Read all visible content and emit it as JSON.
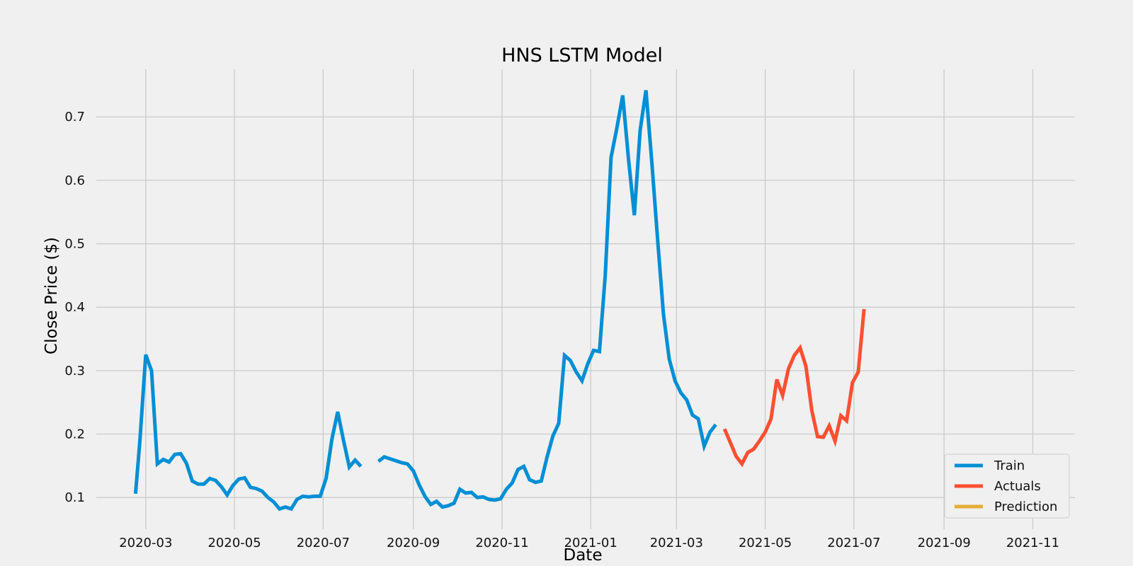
{
  "chart_data": {
    "type": "line",
    "title": "HNS LSTM Model",
    "xlabel": "Date",
    "ylabel": "Close Price ($)",
    "xlim": [
      "2020-01-27",
      "2021-11-30"
    ],
    "ylim": [
      0.05,
      0.775
    ],
    "x_ticks": [
      "2020-03",
      "2020-05",
      "2020-07",
      "2020-09",
      "2020-11",
      "2021-01",
      "2021-03",
      "2021-05",
      "2021-07",
      "2021-09",
      "2021-11"
    ],
    "y_ticks": [
      "0.1",
      "0.2",
      "0.3",
      "0.4",
      "0.5",
      "0.6",
      "0.7"
    ],
    "grid": true,
    "legend_position": "bottom-right",
    "series": [
      {
        "name": "Train",
        "color": "#008fd5",
        "points": [
          [
            "2020-02-23",
            0.106
          ],
          [
            "2020-02-26",
            0.19
          ],
          [
            "2020-03-01",
            0.325
          ],
          [
            "2020-03-05",
            0.3
          ],
          [
            "2020-03-09",
            0.153
          ],
          [
            "2020-03-13",
            0.16
          ],
          [
            "2020-03-17",
            0.156
          ],
          [
            "2020-03-21",
            0.168
          ],
          [
            "2020-03-25",
            0.169
          ],
          [
            "2020-03-29",
            0.154
          ],
          [
            "2020-04-02",
            0.126
          ],
          [
            "2020-04-06",
            0.121
          ],
          [
            "2020-04-10",
            0.121
          ],
          [
            "2020-04-14",
            0.13
          ],
          [
            "2020-04-18",
            0.127
          ],
          [
            "2020-04-22",
            0.117
          ],
          [
            "2020-04-26",
            0.104
          ],
          [
            "2020-04-30",
            0.119
          ],
          [
            "2020-05-04",
            0.129
          ],
          [
            "2020-05-08",
            0.131
          ],
          [
            "2020-05-12",
            0.116
          ],
          [
            "2020-05-16",
            0.114
          ],
          [
            "2020-05-20",
            0.11
          ],
          [
            "2020-05-24",
            0.1
          ],
          [
            "2020-05-28",
            0.093
          ],
          [
            "2020-06-01",
            0.082
          ],
          [
            "2020-06-05",
            0.085
          ],
          [
            "2020-06-09",
            0.082
          ],
          [
            "2020-06-13",
            0.097
          ],
          [
            "2020-06-17",
            0.102
          ],
          [
            "2020-06-21",
            0.101
          ],
          [
            "2020-06-25",
            0.102
          ],
          [
            "2020-06-29",
            0.102
          ],
          [
            "2020-07-03",
            0.13
          ],
          [
            "2020-07-07",
            0.192
          ],
          [
            "2020-07-11",
            0.235
          ],
          [
            "2020-07-15",
            0.19
          ],
          [
            "2020-07-19",
            0.148
          ],
          [
            "2020-07-23",
            0.159
          ],
          [
            "2020-07-27",
            0.149
          ],
          null,
          [
            "2020-08-08",
            0.157
          ],
          [
            "2020-08-12",
            0.164
          ],
          [
            "2020-08-16",
            0.161
          ],
          [
            "2020-08-20",
            0.158
          ],
          [
            "2020-08-24",
            0.155
          ],
          [
            "2020-08-28",
            0.153
          ],
          [
            "2020-09-01",
            0.142
          ],
          [
            "2020-09-05",
            0.12
          ],
          [
            "2020-09-09",
            0.102
          ],
          [
            "2020-09-13",
            0.089
          ],
          [
            "2020-09-17",
            0.094
          ],
          [
            "2020-09-21",
            0.085
          ],
          [
            "2020-09-25",
            0.087
          ],
          [
            "2020-09-29",
            0.091
          ],
          [
            "2020-10-03",
            0.113
          ],
          [
            "2020-10-07",
            0.107
          ],
          [
            "2020-10-11",
            0.108
          ],
          [
            "2020-10-15",
            0.1
          ],
          [
            "2020-10-19",
            0.101
          ],
          [
            "2020-10-23",
            0.097
          ],
          [
            "2020-10-27",
            0.096
          ],
          [
            "2020-10-31",
            0.098
          ],
          [
            "2020-11-04",
            0.113
          ],
          [
            "2020-11-08",
            0.123
          ],
          [
            "2020-11-12",
            0.144
          ],
          [
            "2020-11-16",
            0.149
          ],
          [
            "2020-11-20",
            0.128
          ],
          [
            "2020-11-24",
            0.124
          ],
          [
            "2020-11-28",
            0.126
          ],
          [
            "2020-12-02",
            0.164
          ],
          [
            "2020-12-06",
            0.197
          ],
          [
            "2020-12-10",
            0.217
          ],
          [
            "2020-12-14",
            0.324
          ],
          [
            "2020-12-18",
            0.316
          ],
          [
            "2020-12-22",
            0.298
          ],
          [
            "2020-12-26",
            0.284
          ],
          [
            "2020-12-30",
            0.311
          ],
          [
            "2021-01-03",
            0.332
          ],
          [
            "2021-01-07",
            0.33
          ],
          [
            "2021-01-11",
            0.45
          ],
          [
            "2021-01-15",
            0.636
          ],
          [
            "2021-01-19",
            0.683
          ],
          [
            "2021-01-23",
            0.734
          ],
          [
            "2021-01-27",
            0.633
          ],
          [
            "2021-01-31",
            0.545
          ],
          [
            "2021-02-04",
            0.679
          ],
          [
            "2021-02-08",
            0.742
          ],
          [
            "2021-02-12",
            0.63
          ],
          [
            "2021-02-16",
            0.508
          ],
          [
            "2021-02-20",
            0.389
          ],
          [
            "2021-02-24",
            0.318
          ],
          [
            "2021-02-28",
            0.284
          ],
          [
            "2021-03-04",
            0.265
          ],
          [
            "2021-03-08",
            0.254
          ],
          [
            "2021-03-12",
            0.23
          ],
          [
            "2021-03-16",
            0.224
          ],
          [
            "2021-03-20",
            0.181
          ],
          [
            "2021-03-24",
            0.203
          ],
          [
            "2021-03-28",
            0.215
          ]
        ]
      },
      {
        "name": "Actuals",
        "color": "#fc4f30",
        "points": [
          [
            "2021-04-03",
            0.208
          ],
          [
            "2021-04-07",
            0.187
          ],
          [
            "2021-04-11",
            0.165
          ],
          [
            "2021-04-15",
            0.153
          ],
          [
            "2021-04-19",
            0.171
          ],
          [
            "2021-04-23",
            0.176
          ],
          [
            "2021-04-27",
            0.189
          ],
          [
            "2021-05-01",
            0.203
          ],
          [
            "2021-05-05",
            0.224
          ],
          [
            "2021-05-09",
            0.286
          ],
          [
            "2021-05-13",
            0.261
          ],
          [
            "2021-05-17",
            0.303
          ],
          [
            "2021-05-21",
            0.324
          ],
          [
            "2021-05-25",
            0.336
          ],
          [
            "2021-05-29",
            0.307
          ],
          [
            "2021-06-02",
            0.238
          ],
          [
            "2021-06-06",
            0.196
          ],
          [
            "2021-06-10",
            0.195
          ],
          [
            "2021-06-14",
            0.213
          ],
          [
            "2021-06-18",
            0.189
          ],
          [
            "2021-06-22",
            0.229
          ],
          [
            "2021-06-26",
            0.221
          ],
          [
            "2021-06-30",
            0.281
          ],
          [
            "2021-07-04",
            0.298
          ],
          [
            "2021-07-08",
            0.397
          ]
        ]
      },
      {
        "name": "Prediction",
        "color": "#e5ae38",
        "points": []
      }
    ]
  }
}
